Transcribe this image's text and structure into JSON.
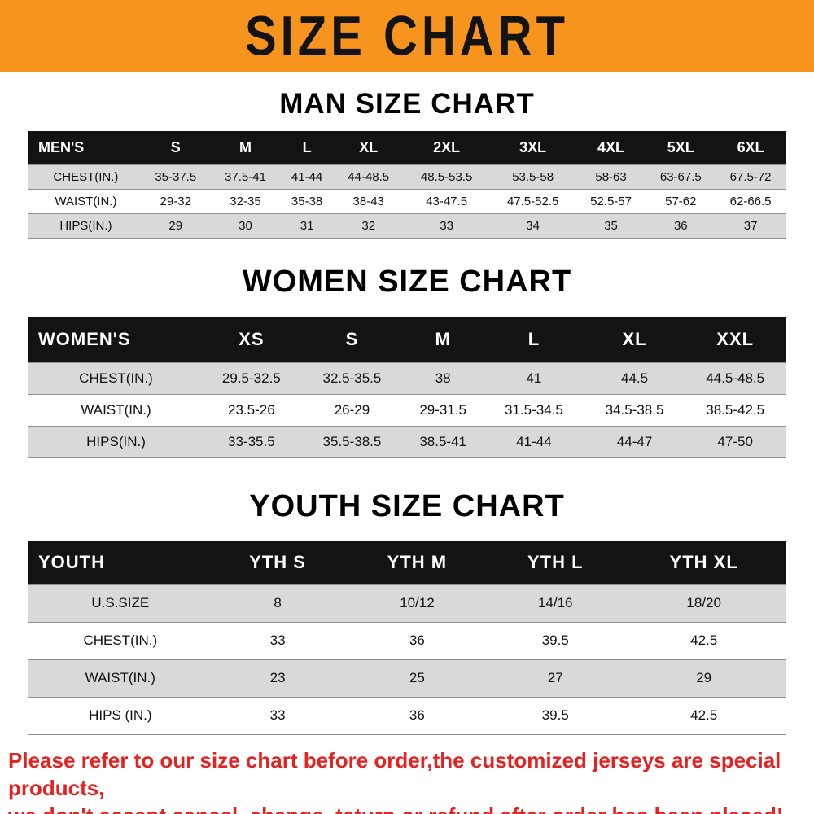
{
  "banner": {
    "title": "SIZE CHART",
    "bg_color": "#F7941E",
    "text_color": "#131313"
  },
  "colors": {
    "header_row_bg": "#131313",
    "header_row_text": "#FFFFFF",
    "shade_row_bg": "#D9D9D9",
    "plain_row_bg": "#FFFFFF",
    "footer_text": "#E32222"
  },
  "chart_data": [
    {
      "type": "table",
      "title": "MAN SIZE CHART",
      "header": [
        "MEN'S",
        "S",
        "M",
        "L",
        "XL",
        "2XL",
        "3XL",
        "4XL",
        "5XL",
        "6XL"
      ],
      "rows": [
        [
          "CHEST(IN.)",
          "35-37.5",
          "37.5-41",
          "41-44",
          "44-48.5",
          "48.5-53.5",
          "53.5-58",
          "58-63",
          "63-67.5",
          "67.5-72"
        ],
        [
          "WAIST(IN.)",
          "29-32",
          "32-35",
          "35-38",
          "38-43",
          "43-47.5",
          "47.5-52.5",
          "52.5-57",
          "57-62",
          "62-66.5"
        ],
        [
          "HIPS(IN.)",
          "29",
          "30",
          "31",
          "32",
          "33",
          "34",
          "35",
          "36",
          "37"
        ]
      ]
    },
    {
      "type": "table",
      "title": "WOMEN SIZE CHART",
      "header": [
        "WOMEN'S",
        "XS",
        "S",
        "M",
        "L",
        "XL",
        "XXL"
      ],
      "rows": [
        [
          "CHEST(IN.)",
          "29.5-32.5",
          "32.5-35.5",
          "38",
          "41",
          "44.5",
          "44.5-48.5"
        ],
        [
          "WAIST(IN.)",
          "23.5-26",
          "26-29",
          "29-31.5",
          "31.5-34.5",
          "34.5-38.5",
          "38.5-42.5"
        ],
        [
          "HIPS(IN.)",
          "33-35.5",
          "35.5-38.5",
          "38.5-41",
          "41-44",
          "44-47",
          "47-50"
        ]
      ]
    },
    {
      "type": "table",
      "title": "YOUTH SIZE CHART",
      "header": [
        "YOUTH",
        "YTH S",
        "YTH M",
        "YTH L",
        "YTH XL"
      ],
      "rows": [
        [
          "U.S.SIZE",
          "8",
          "10/12",
          "14/16",
          "18/20"
        ],
        [
          "CHEST(IN.)",
          "33",
          "36",
          "39.5",
          "42.5"
        ],
        [
          "WAIST(IN.)",
          "23",
          "25",
          "27",
          "29"
        ],
        [
          "HIPS (IN.)",
          "33",
          "36",
          "39.5",
          "42.5"
        ]
      ]
    }
  ],
  "footer": {
    "line1": "Please refer to our size chart before order,the customized jerseys are special products,",
    "line2": "we don't accept cancel, change, teturn or refund after order has been placed!"
  }
}
